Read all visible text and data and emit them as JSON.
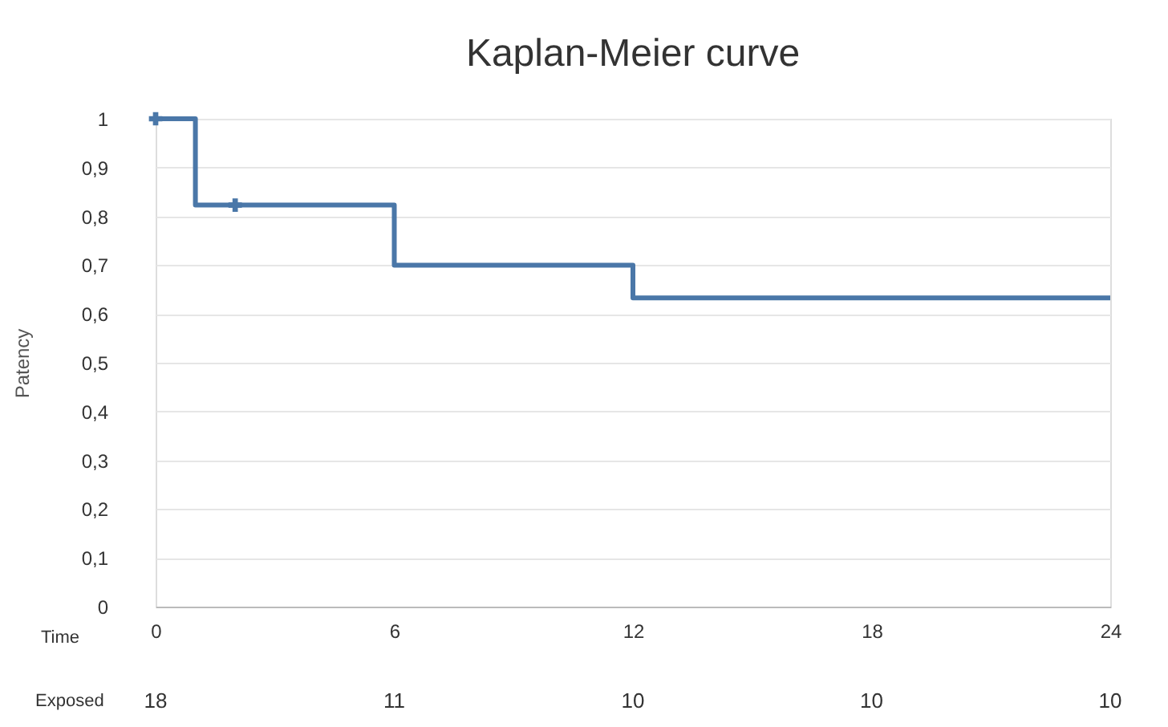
{
  "chart_data": {
    "type": "step",
    "title": "Kaplan-Meier curve",
    "xlabel": "Time",
    "ylabel": "Patency",
    "series": [
      {
        "type": "step",
        "color": "#4a77a8",
        "x": [
          0,
          1,
          6,
          12,
          24
        ],
        "values": [
          1,
          0.823,
          0.7,
          0.633,
          0.633
        ]
      },
      {
        "type": "scatter",
        "color": "#4a77a8",
        "x": [
          0,
          2
        ],
        "values": [
          1,
          0.823
        ],
        "marker": "cross"
      }
    ],
    "xlim": [
      0,
      24
    ],
    "xticks": [
      0,
      6,
      12,
      18,
      24
    ],
    "ylim": [
      0,
      1
    ],
    "yticks": [
      0,
      {
        "value": 0.1,
        "label": "0,1"
      },
      {
        "value": 0.2,
        "label": "0,2"
      },
      {
        "value": 0.3,
        "label": "0,3"
      },
      {
        "value": 0.4,
        "label": "0,4"
      },
      {
        "value": 0.5,
        "label": "0,5"
      },
      {
        "value": 0.6,
        "label": "0,6"
      },
      {
        "value": 0.7,
        "label": "0,7"
      },
      {
        "value": 0.8,
        "label": "0,8"
      },
      {
        "value": 0.9,
        "label": "0,9"
      },
      1
    ],
    "grid": "y",
    "annotations": [
      "Exposed",
      "18",
      "11",
      "10",
      "10",
      "10"
    ]
  }
}
